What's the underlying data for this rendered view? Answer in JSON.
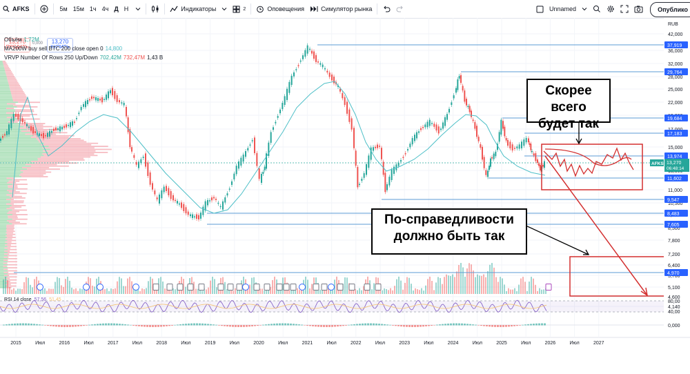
{
  "toolbar": {
    "symbol": "AFKS",
    "timeframes": [
      "5м",
      "15м",
      "1ч",
      "4ч",
      "Д",
      "Н"
    ],
    "active_timeframe": "Д",
    "indicators_label": "Индикаторы",
    "layouts_count": "2",
    "alerts_label": "Оповещения",
    "replay_label": "Симулятор рынка",
    "layout_name": "Unnamed",
    "publish_label": "Опублико"
  },
  "trade": {
    "sell_price": "13,270",
    "sell_label": "ПРОДАТЬ",
    "spread": "0,000",
    "buy_price": "13,270",
    "buy_label": "КУПИТЬ"
  },
  "legends": {
    "volume_name": "Объём",
    "volume_value": "1,72M",
    "ma_name": "MA200W buy sell BTC 200 close open 0",
    "ma_value": "14,800",
    "vrvp_name": "VRVP Number Of Rows 250 Up/Down",
    "vrvp_up": "702,42M",
    "vrvp_down": "732,47M",
    "vrvp_total": "1,43 B",
    "rsi_name": "RSI 14 close",
    "rsi_value": "57,56",
    "rsi_ma": "51,45"
  },
  "price_axis": {
    "currency": "RUB",
    "ticks": [
      "42,000",
      "36,000",
      "32,000",
      "28,000",
      "25,000",
      "22,000",
      "19,000",
      "17,000",
      "15,000",
      "13,000",
      "11,000",
      "10,500",
      "9,500",
      "8,500",
      "7,800",
      "7,200",
      "6,400",
      "5,700",
      "5,100",
      "4,600",
      "4,140"
    ],
    "rsi_ticks": [
      "80,00",
      "40,00",
      "0,000"
    ]
  },
  "levels": [
    "37,919",
    "29,764",
    "19,684",
    "17,183",
    "13,974",
    "11,602",
    "9,547",
    "8,483",
    "7,605",
    "4,970"
  ],
  "current_price": {
    "symbol": "AFKS",
    "price": "13,270",
    "countdown": "06:48:14"
  },
  "time_axis": [
    "2015",
    "Июл",
    "2016",
    "Июл",
    "2017",
    "Июл",
    "2018",
    "Июл",
    "2019",
    "Июл",
    "2020",
    "Июл",
    "2021",
    "Июл",
    "2022",
    "Июл",
    "2023",
    "Июл",
    "2024",
    "Июл",
    "2025",
    "Июл",
    "2026",
    "Июл",
    "2027"
  ],
  "annotations": {
    "top_callout": [
      "Скорее всего",
      "будет так"
    ],
    "bottom_callout": [
      "По-справедливости",
      "должно быть так"
    ]
  },
  "colors": {
    "up": "#26a69a",
    "down": "#ef5350",
    "ma": "#4dbfc7",
    "level": "#5b9bd5",
    "annotation": "#d32f2f",
    "price_tag": "#26a69a"
  }
}
